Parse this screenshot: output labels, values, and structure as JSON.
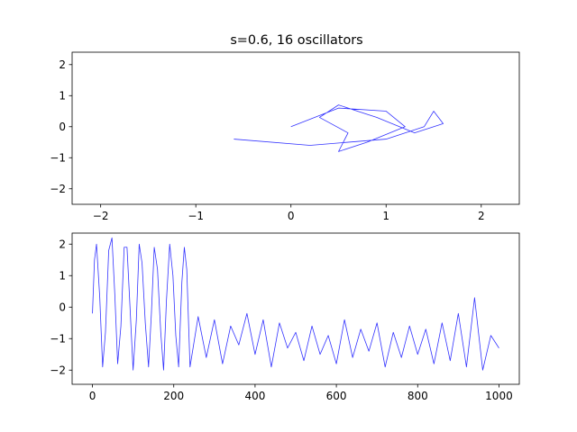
{
  "chart_data": [
    {
      "type": "line",
      "subtype": "phase-portrait",
      "title": "s=0.6, 16 oscillators",
      "xlabel": "",
      "ylabel": "",
      "xlim": [
        -2.3,
        2.4
      ],
      "ylim": [
        -2.5,
        2.4
      ],
      "xticks": [
        -2,
        -1,
        0,
        1,
        2
      ],
      "xtick_labels": [
        "−2",
        "−1",
        "0",
        "1",
        "2"
      ],
      "yticks": [
        -2,
        -1,
        0,
        1,
        2
      ],
      "ytick_labels": [
        "−2",
        "−1",
        "0",
        "1",
        "2"
      ],
      "grid": false,
      "line_color": "#3333ff",
      "series": [
        {
          "x": [
            0,
            0.5,
            1,
            1.2,
            0.8,
            0.5,
            0.6,
            0.3,
            0.5,
            0.9,
            1.3,
            1.6,
            1.5,
            1.4,
            1.0,
            0.2,
            -0.6
          ],
          "y": [
            0,
            0.6,
            0.5,
            0,
            -0.5,
            -0.8,
            -0.2,
            0.3,
            0.7,
            0.3,
            -0.2,
            0.1,
            0.5,
            0.0,
            -0.4,
            -0.6,
            -0.4
          ]
        }
      ]
    },
    {
      "type": "line",
      "title": "",
      "xlabel": "",
      "ylabel": "",
      "xlim": [
        -50,
        1050
      ],
      "ylim": [
        -2.45,
        2.35
      ],
      "xticks": [
        0,
        200,
        400,
        600,
        800,
        1000
      ],
      "xtick_labels": [
        "0",
        "200",
        "400",
        "600",
        "800",
        "1000"
      ],
      "yticks": [
        -2,
        -1,
        0,
        1,
        2
      ],
      "ytick_labels": [
        "−2",
        "−1",
        "0",
        "1",
        "2"
      ],
      "grid": false,
      "line_color": "#3333ff",
      "series": [
        {
          "x": [
            0,
            5,
            10,
            18,
            25,
            32,
            40,
            48,
            55,
            62,
            70,
            78,
            85,
            92,
            100,
            108,
            115,
            122,
            130,
            138,
            145,
            152,
            160,
            168,
            175,
            182,
            190,
            198,
            205,
            212,
            220,
            226,
            232,
            240,
            260,
            280,
            300,
            320,
            340,
            360,
            380,
            400,
            420,
            440,
            460,
            480,
            500,
            520,
            540,
            560,
            580,
            600,
            620,
            640,
            660,
            680,
            700,
            720,
            740,
            760,
            780,
            800,
            820,
            840,
            860,
            880,
            900,
            920,
            940,
            960,
            980,
            1000
          ],
          "y": [
            -0.2,
            1.5,
            2.0,
            0.3,
            -1.9,
            -0.8,
            1.8,
            2.2,
            0.4,
            -1.8,
            -0.6,
            1.9,
            1.9,
            0.1,
            -2.0,
            -0.4,
            2.0,
            1.4,
            -0.5,
            -1.9,
            -0.2,
            1.9,
            1.2,
            -0.8,
            -2.0,
            0.2,
            2.0,
            1.0,
            -0.9,
            -1.9,
            0.8,
            1.9,
            1.2,
            -1.9,
            -0.3,
            -1.6,
            -0.4,
            -1.8,
            -0.6,
            -1.2,
            -0.2,
            -1.5,
            -0.4,
            -1.9,
            -0.5,
            -1.3,
            -0.8,
            -1.7,
            -0.6,
            -1.5,
            -0.9,
            -1.8,
            -0.4,
            -1.6,
            -0.7,
            -1.4,
            -0.5,
            -1.9,
            -0.8,
            -1.6,
            -0.6,
            -1.5,
            -0.7,
            -1.8,
            -0.5,
            -1.7,
            -0.2,
            -1.9,
            0.3,
            -2.0,
            -0.9,
            -1.3
          ]
        }
      ]
    }
  ]
}
